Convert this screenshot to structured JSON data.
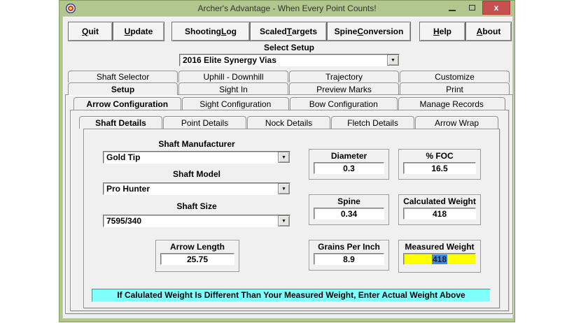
{
  "window": {
    "title": "Archer's Advantage - When Every Point Counts!"
  },
  "toolbar": {
    "items": [
      {
        "label": "Quit",
        "key": "Q"
      },
      {
        "label": "Update",
        "key": "U"
      },
      {
        "label": "Shooting Log",
        "key": "L"
      },
      {
        "label": "Scaled Targets",
        "key": "T"
      },
      {
        "label": "Spine Conversion",
        "key": "C"
      },
      {
        "label": "Help",
        "key": "H"
      },
      {
        "label": "About",
        "key": "A"
      }
    ]
  },
  "setup_select": {
    "label": "Select Setup",
    "value": "2016 Elite Synergy Vias"
  },
  "tabs": {
    "row1": {
      "items": [
        "Shaft Selector",
        "Uphill - Downhill",
        "Trajectory",
        "Customize"
      ]
    },
    "row2": {
      "items": [
        "Setup",
        "Sight In",
        "Preview Marks",
        "Print"
      ],
      "active": "Setup"
    },
    "row3": {
      "items": [
        "Arrow Configuration",
        "Sight Configuration",
        "Bow Configuration",
        "Manage Records"
      ],
      "active": "Arrow Configuration"
    },
    "row4": {
      "items": [
        "Shaft Details",
        "Point Details",
        "Nock Details",
        "Fletch Details",
        "Arrow Wrap"
      ],
      "active": "Shaft Details"
    }
  },
  "form": {
    "shaft_manufacturer": {
      "label": "Shaft Manufacturer",
      "value": "Gold Tip"
    },
    "shaft_model": {
      "label": "Shaft Model",
      "value": "Pro Hunter"
    },
    "shaft_size": {
      "label": "Shaft Size",
      "value": "7595/340"
    },
    "arrow_length": {
      "label": "Arrow Length",
      "value": "25.75"
    },
    "diameter": {
      "label": "Diameter",
      "value": "0.3"
    },
    "foc": {
      "label": "% FOC",
      "value": "16.5"
    },
    "spine": {
      "label": "Spine",
      "value": "0.34"
    },
    "calculated_weight": {
      "label": "Calculated Weight",
      "value": "418"
    },
    "grains_per_inch": {
      "label": "Grains Per Inch",
      "value": "8.9"
    },
    "measured_weight": {
      "label": "Measured Weight",
      "value": "418"
    }
  },
  "notice": "If Calulated Weight Is Different Than Your Measured Weight, Enter Actual Weight Above",
  "colors": {
    "frame_green": "#b2c78d",
    "close_red": "#c75050",
    "field_yellow": "#ffff00",
    "notice_cyan": "#80ffff",
    "selection_blue": "#3d8fdc"
  }
}
